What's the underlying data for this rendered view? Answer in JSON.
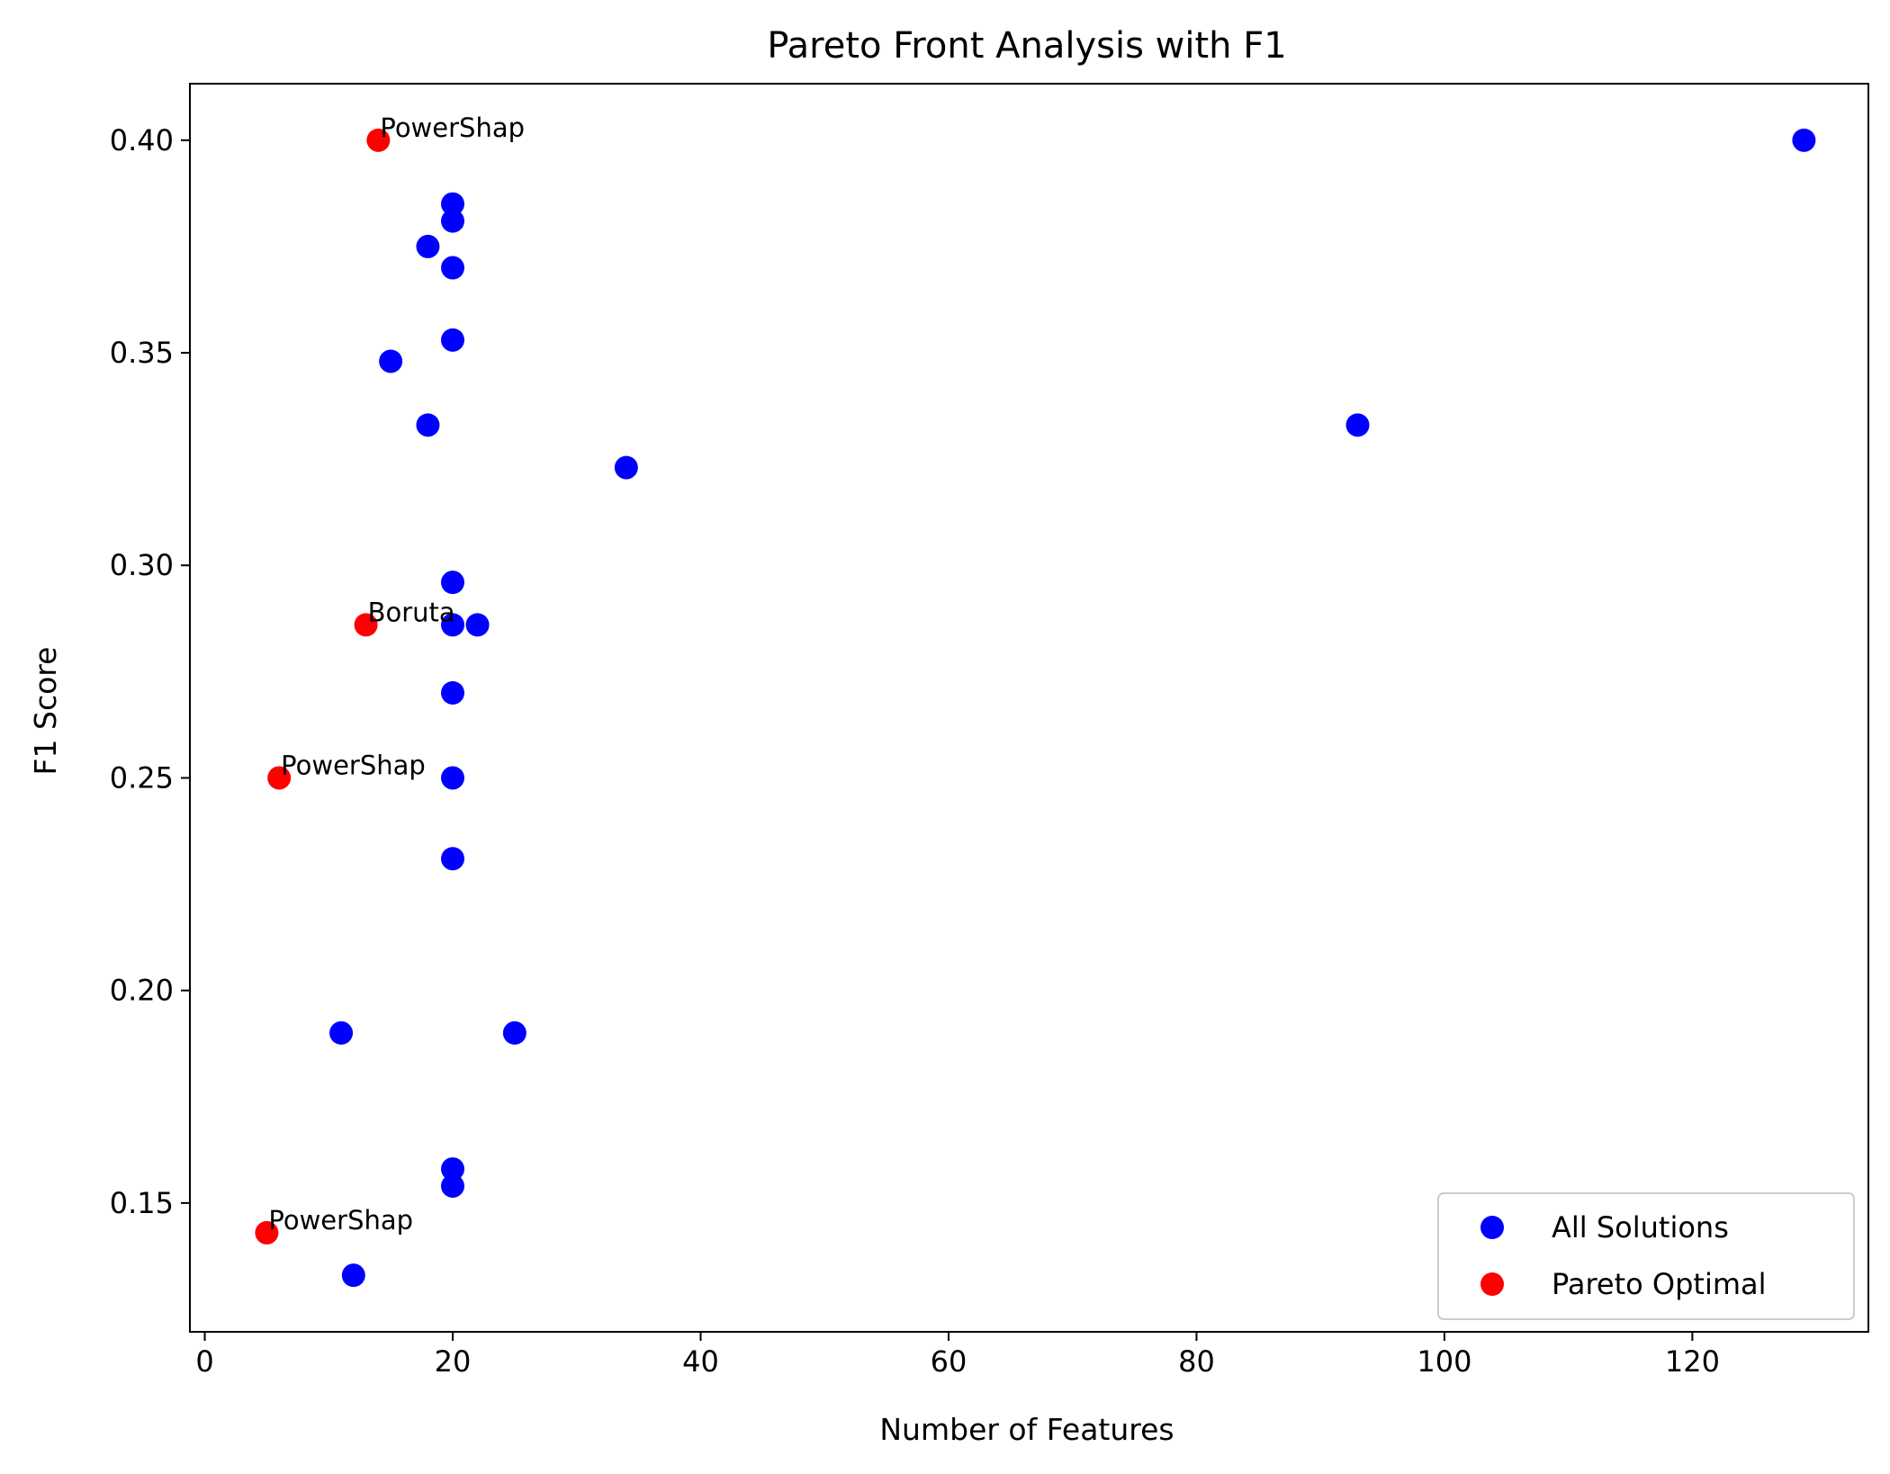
{
  "chart_data": {
    "type": "scatter",
    "title": "Pareto Front Analysis with F1",
    "xlabel": "Number of Features",
    "ylabel": "F1 Score",
    "xlim": [
      -1.2,
      134.2
    ],
    "ylim": [
      0.1197,
      0.4133
    ],
    "xticks": [
      0,
      20,
      40,
      60,
      80,
      100,
      120
    ],
    "yticks": [
      0.15,
      0.2,
      0.25,
      0.3,
      0.35,
      0.4
    ],
    "ytick_labels": [
      "0.15",
      "0.20",
      "0.25",
      "0.30",
      "0.35",
      "0.40"
    ],
    "legend_position": "bottom-right",
    "series": [
      {
        "name": "All Solutions",
        "color": "#0000ff",
        "points": [
          {
            "x": 129,
            "y": 0.4
          },
          {
            "x": 20,
            "y": 0.385
          },
          {
            "x": 20,
            "y": 0.381
          },
          {
            "x": 18,
            "y": 0.375
          },
          {
            "x": 20,
            "y": 0.37
          },
          {
            "x": 20,
            "y": 0.353
          },
          {
            "x": 15,
            "y": 0.348
          },
          {
            "x": 18,
            "y": 0.333
          },
          {
            "x": 93,
            "y": 0.333
          },
          {
            "x": 34,
            "y": 0.323
          },
          {
            "x": 20,
            "y": 0.296
          },
          {
            "x": 20,
            "y": 0.286
          },
          {
            "x": 22,
            "y": 0.286
          },
          {
            "x": 20,
            "y": 0.27
          },
          {
            "x": 20,
            "y": 0.25
          },
          {
            "x": 20,
            "y": 0.231
          },
          {
            "x": 11,
            "y": 0.19
          },
          {
            "x": 25,
            "y": 0.19
          },
          {
            "x": 20,
            "y": 0.158
          },
          {
            "x": 20,
            "y": 0.154
          },
          {
            "x": 12,
            "y": 0.133
          }
        ]
      },
      {
        "name": "Pareto Optimal",
        "color": "#ff0000",
        "points": [
          {
            "x": 14,
            "y": 0.4,
            "label": "PowerShap"
          },
          {
            "x": 13,
            "y": 0.286,
            "label": "Boruta"
          },
          {
            "x": 6,
            "y": 0.25,
            "label": "PowerShap"
          },
          {
            "x": 5,
            "y": 0.143,
            "label": "PowerShap"
          }
        ]
      }
    ]
  }
}
